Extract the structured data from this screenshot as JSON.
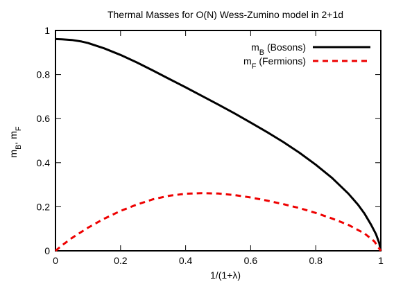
{
  "chart_data": {
    "type": "line",
    "title": "Thermal Masses for O(N) Wess-Zumino model in 2+1d",
    "xlabel": "1/(1+λ)",
    "ylabel": {
      "parts": [
        {
          "text": "m",
          "sub": "B"
        },
        {
          "text": ", m",
          "sub": "F"
        }
      ]
    },
    "xlim": [
      0,
      1
    ],
    "ylim": [
      0,
      1
    ],
    "xticks": [
      "0",
      "0.2",
      "0.4",
      "0.6",
      "0.8",
      "1"
    ],
    "yticks": [
      "0",
      "0.2",
      "0.4",
      "0.6",
      "0.8",
      "1"
    ],
    "grid": false,
    "legend_position": "top-right",
    "series": [
      {
        "name": "m_B (Bosons)",
        "legend": {
          "main": "m",
          "sub": "B",
          "rest": " (Bosons)"
        },
        "color": "#000000",
        "dash": "solid",
        "x": [
          0,
          0.02,
          0.05,
          0.08,
          0.1,
          0.15,
          0.2,
          0.25,
          0.3,
          0.35,
          0.4,
          0.45,
          0.5,
          0.55,
          0.6,
          0.65,
          0.7,
          0.75,
          0.8,
          0.85,
          0.9,
          0.93,
          0.95,
          0.97,
          0.985,
          0.995,
          1.0
        ],
        "y": [
          0.961,
          0.96,
          0.957,
          0.95,
          0.943,
          0.919,
          0.889,
          0.855,
          0.818,
          0.78,
          0.742,
          0.703,
          0.664,
          0.624,
          0.582,
          0.539,
          0.494,
          0.445,
          0.391,
          0.331,
          0.26,
          0.209,
          0.169,
          0.119,
          0.076,
          0.036,
          0.0
        ]
      },
      {
        "name": "m_F (Fermions)",
        "legend": {
          "main": "m",
          "sub": "F",
          "rest": " (Fermions)"
        },
        "color": "#ee0000",
        "dash": "dashed",
        "x": [
          0,
          0.02,
          0.05,
          0.1,
          0.15,
          0.2,
          0.25,
          0.3,
          0.35,
          0.4,
          0.45,
          0.5,
          0.55,
          0.6,
          0.65,
          0.7,
          0.75,
          0.8,
          0.85,
          0.9,
          0.95,
          0.98,
          1.0
        ],
        "y": [
          0.0,
          0.025,
          0.058,
          0.105,
          0.146,
          0.181,
          0.21,
          0.234,
          0.25,
          0.259,
          0.262,
          0.26,
          0.253,
          0.242,
          0.228,
          0.212,
          0.194,
          0.172,
          0.147,
          0.118,
          0.079,
          0.043,
          0.0
        ]
      }
    ]
  }
}
